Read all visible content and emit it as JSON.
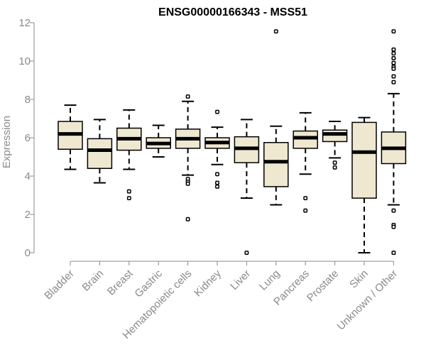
{
  "chart_data": {
    "type": "boxplot",
    "title": "ENSG00000166343 - MSS51",
    "ylabel": "Expression",
    "xlabel": "",
    "ylim": [
      0,
      12
    ],
    "yticks": [
      0,
      2,
      4,
      6,
      8,
      10,
      12
    ],
    "grid": false,
    "colors": {
      "box_fill": "#efe8d0",
      "stroke": "#000000",
      "axis": "#8a8a8a"
    },
    "categories": [
      "Bladder",
      "Brain",
      "Breast",
      "Gastric",
      "Hematopoietic cells",
      "Kidney",
      "Liver",
      "Lung",
      "Pancreas",
      "Prostate",
      "Skin",
      "Unknown / Other"
    ],
    "boxes": [
      {
        "whisker_low": 4.35,
        "q1": 5.4,
        "median": 6.2,
        "q3": 6.85,
        "whisker_high": 7.7,
        "outliers": []
      },
      {
        "whisker_low": 3.65,
        "q1": 4.4,
        "median": 5.35,
        "q3": 5.95,
        "whisker_high": 6.95,
        "outliers": []
      },
      {
        "whisker_low": 4.35,
        "q1": 5.35,
        "median": 5.95,
        "q3": 6.5,
        "whisker_high": 7.45,
        "outliers": [
          3.2,
          2.85
        ]
      },
      {
        "whisker_low": 5.0,
        "q1": 5.45,
        "median": 5.7,
        "q3": 6.0,
        "whisker_high": 6.65,
        "outliers": []
      },
      {
        "whisker_low": 4.05,
        "q1": 5.45,
        "median": 5.95,
        "q3": 6.45,
        "whisker_high": 7.9,
        "outliers": [
          8.15,
          3.85,
          3.7,
          3.6,
          1.75
        ]
      },
      {
        "whisker_low": 4.6,
        "q1": 5.45,
        "median": 5.75,
        "q3": 6.0,
        "whisker_high": 6.55,
        "outliers": [
          7.35,
          4.1,
          3.65,
          3.45
        ]
      },
      {
        "whisker_low": 2.85,
        "q1": 4.7,
        "median": 5.45,
        "q3": 6.05,
        "whisker_high": 6.95,
        "outliers": [
          0.0
        ]
      },
      {
        "whisker_low": 2.5,
        "q1": 3.45,
        "median": 4.75,
        "q3": 5.75,
        "whisker_high": 6.6,
        "outliers": [
          11.55
        ]
      },
      {
        "whisker_low": 4.1,
        "q1": 5.45,
        "median": 6.0,
        "q3": 6.35,
        "whisker_high": 7.3,
        "outliers": [
          2.85,
          2.2
        ]
      },
      {
        "whisker_low": 4.95,
        "q1": 5.8,
        "median": 6.2,
        "q3": 6.4,
        "whisker_high": 6.85,
        "outliers": [
          4.7,
          4.45
        ]
      },
      {
        "whisker_low": 0.0,
        "q1": 2.85,
        "median": 5.25,
        "q3": 6.8,
        "whisker_high": 7.05,
        "outliers": []
      },
      {
        "whisker_low": 2.5,
        "q1": 4.65,
        "median": 5.45,
        "q3": 6.3,
        "whisker_high": 8.3,
        "outliers": [
          11.55,
          10.6,
          10.4,
          10.15,
          9.9,
          9.7,
          9.6,
          9.2,
          8.9,
          2.2,
          1.45,
          1.35,
          0.0
        ]
      }
    ]
  }
}
